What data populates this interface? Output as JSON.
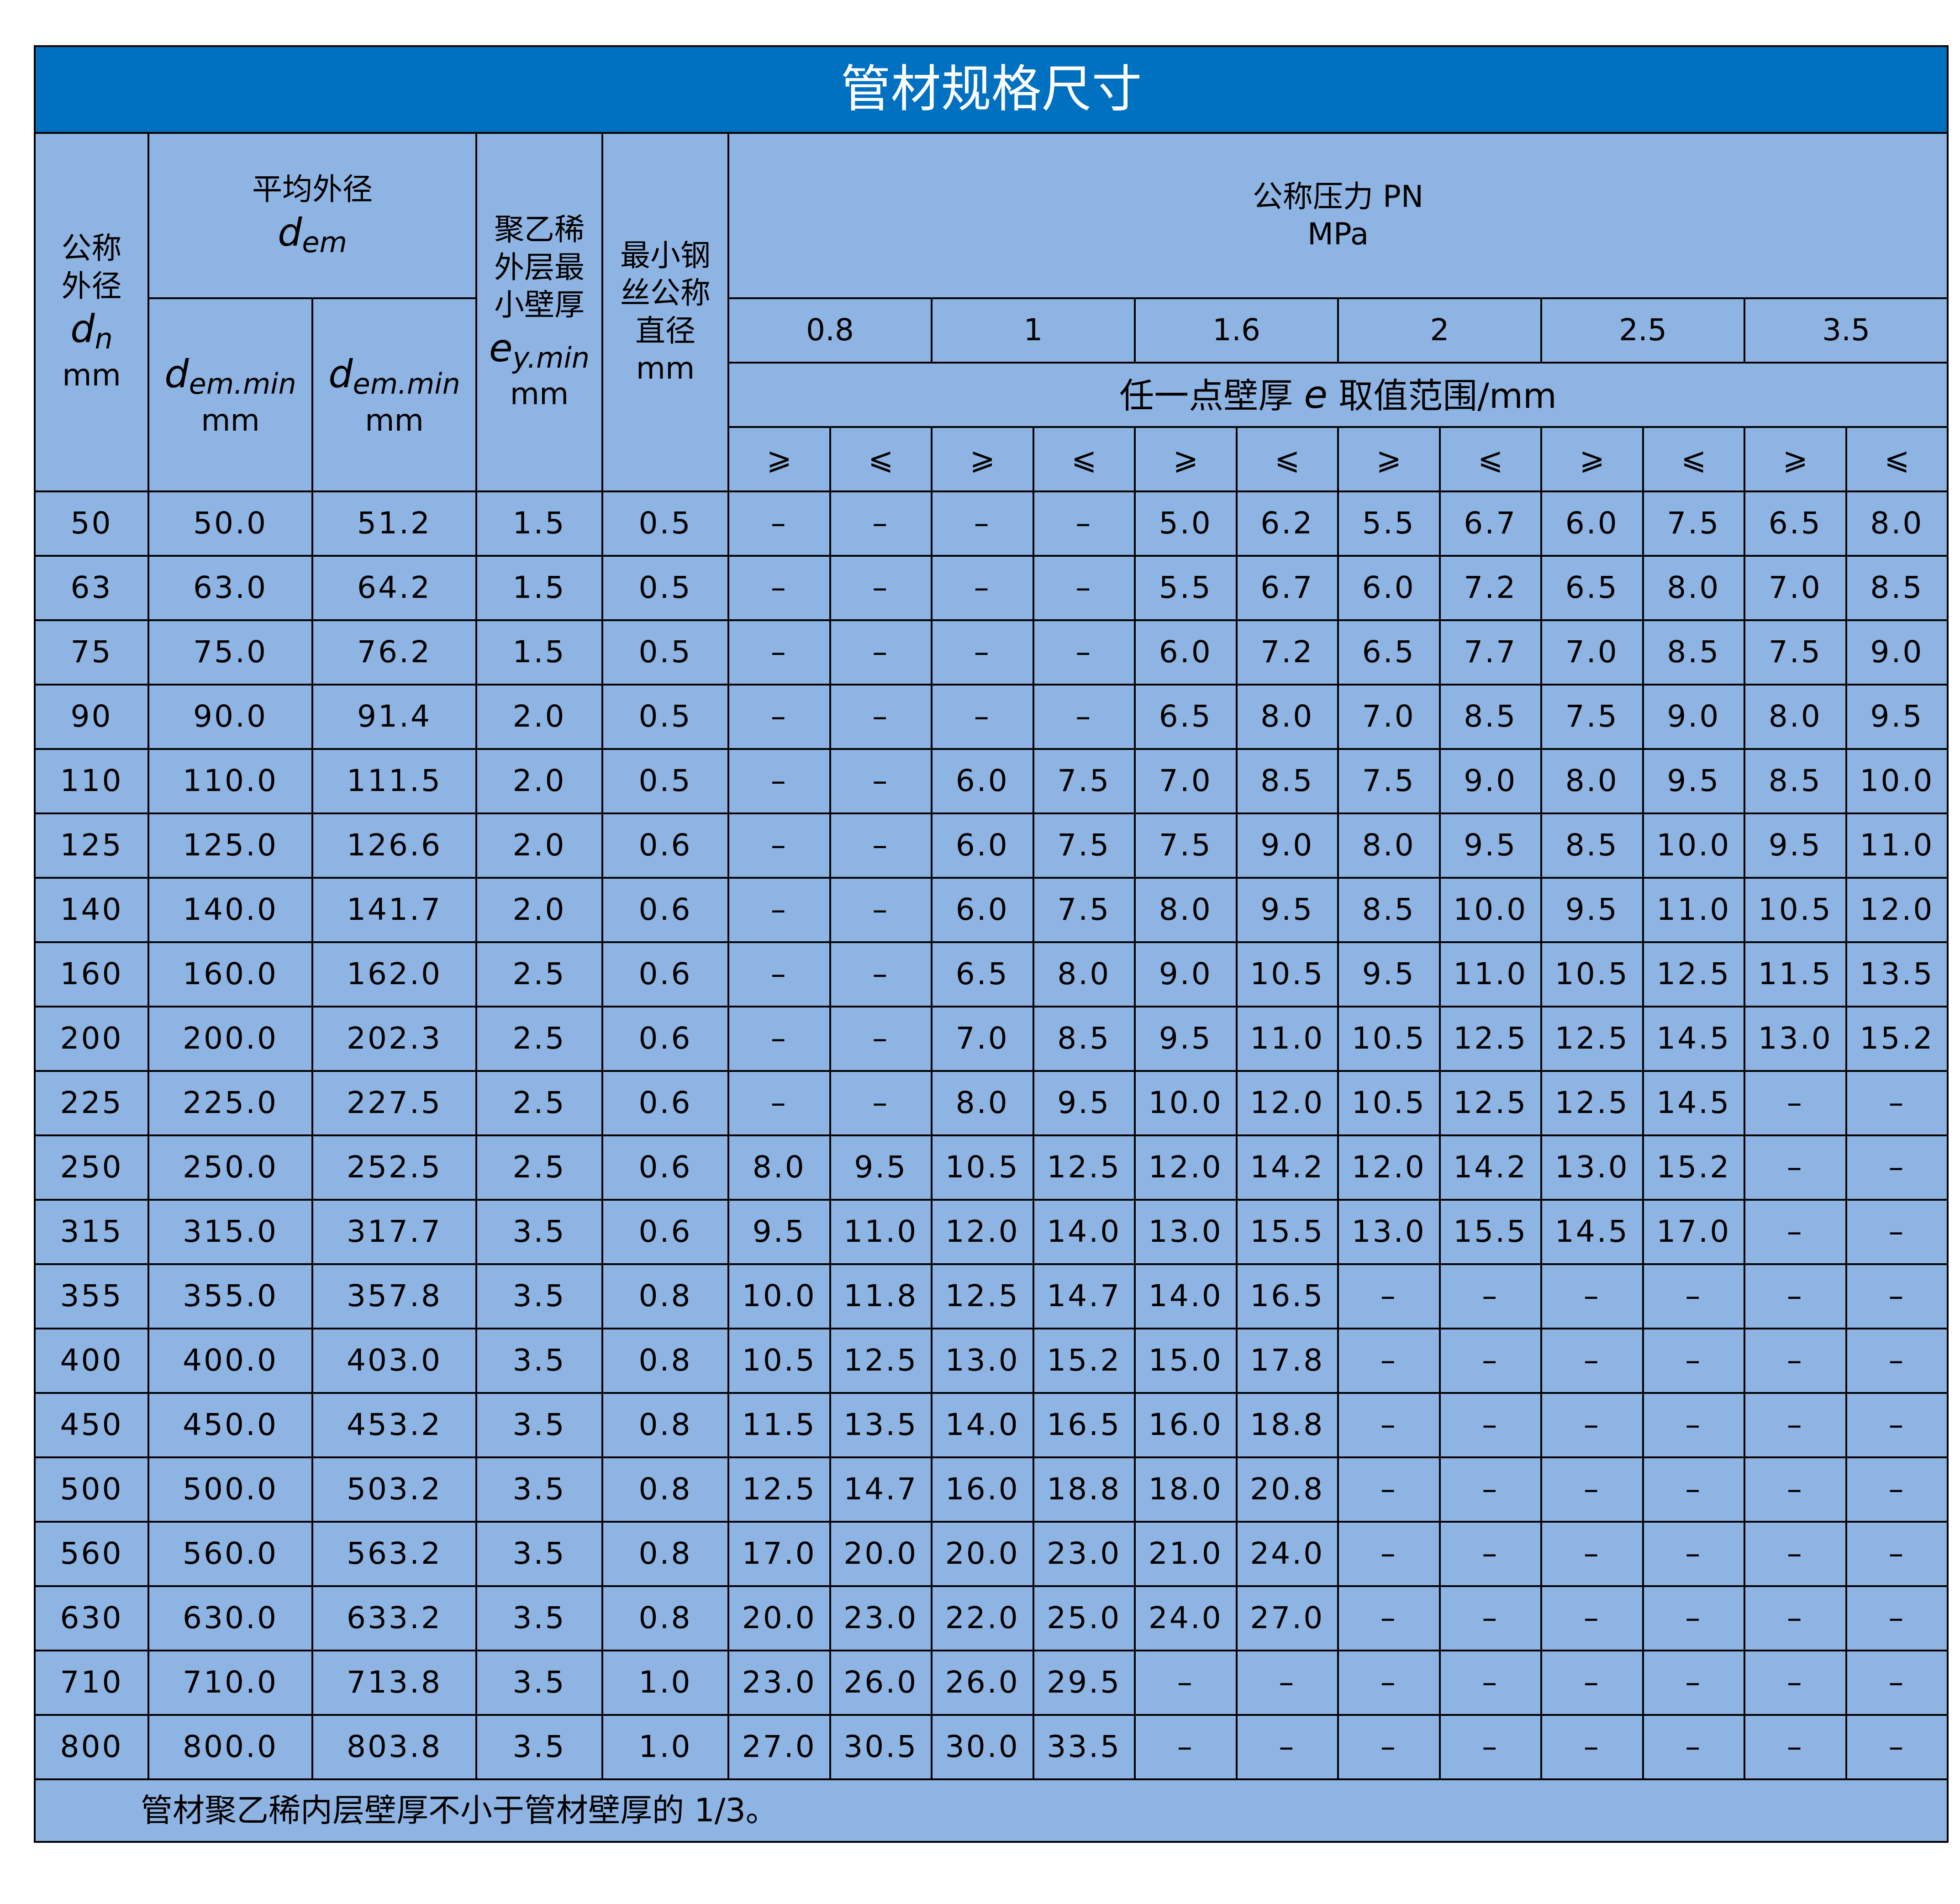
{
  "title": "管材规格尺寸",
  "headers": {
    "dn": {
      "label1": "公称",
      "label2": "外径",
      "symbol": "d",
      "sub": "n",
      "unit": "mm"
    },
    "dem": {
      "label": "平均外径",
      "symbol": "d",
      "sub": "em"
    },
    "dem_min1": {
      "symbol": "d",
      "sub": "em.min",
      "unit": "mm"
    },
    "dem_min2": {
      "symbol": "d",
      "sub": "em.min",
      "unit": "mm"
    },
    "ey": {
      "label1": "聚乙稀",
      "label2": "外层最",
      "label3": "小壁厚",
      "symbol": "e",
      "sub": "y.min",
      "unit": "mm"
    },
    "wire": {
      "label1": "最小钢",
      "label2": "丝公称",
      "label3": "直径",
      "unit": "mm"
    },
    "pn": {
      "label": "公称压力 PN",
      "unit": "MPa"
    },
    "pressures": [
      "0.8",
      "1",
      "1.6",
      "2",
      "2.5",
      "3.5"
    ],
    "range": {
      "pre": "任一点壁厚",
      "symbol": "e",
      "post": " 取值范围/mm"
    },
    "ge": "⩾",
    "le": "⩽"
  },
  "rows": [
    [
      "50",
      "50.0",
      "51.2",
      "1.5",
      "0.5",
      "–",
      "–",
      "–",
      "–",
      "5.0",
      "6.2",
      "5.5",
      "6.7",
      "6.0",
      "7.5",
      "6.5",
      "8.0"
    ],
    [
      "63",
      "63.0",
      "64.2",
      "1.5",
      "0.5",
      "–",
      "–",
      "–",
      "–",
      "5.5",
      "6.7",
      "6.0",
      "7.2",
      "6.5",
      "8.0",
      "7.0",
      "8.5"
    ],
    [
      "75",
      "75.0",
      "76.2",
      "1.5",
      "0.5",
      "–",
      "–",
      "–",
      "–",
      "6.0",
      "7.2",
      "6.5",
      "7.7",
      "7.0",
      "8.5",
      "7.5",
      "9.0"
    ],
    [
      "90",
      "90.0",
      "91.4",
      "2.0",
      "0.5",
      "–",
      "–",
      "–",
      "–",
      "6.5",
      "8.0",
      "7.0",
      "8.5",
      "7.5",
      "9.0",
      "8.0",
      "9.5"
    ],
    [
      "110",
      "110.0",
      "111.5",
      "2.0",
      "0.5",
      "–",
      "–",
      "6.0",
      "7.5",
      "7.0",
      "8.5",
      "7.5",
      "9.0",
      "8.0",
      "9.5",
      "8.5",
      "10.0"
    ],
    [
      "125",
      "125.0",
      "126.6",
      "2.0",
      "0.6",
      "–",
      "–",
      "6.0",
      "7.5",
      "7.5",
      "9.0",
      "8.0",
      "9.5",
      "8.5",
      "10.0",
      "9.5",
      "11.0"
    ],
    [
      "140",
      "140.0",
      "141.7",
      "2.0",
      "0.6",
      "–",
      "–",
      "6.0",
      "7.5",
      "8.0",
      "9.5",
      "8.5",
      "10.0",
      "9.5",
      "11.0",
      "10.5",
      "12.0"
    ],
    [
      "160",
      "160.0",
      "162.0",
      "2.5",
      "0.6",
      "–",
      "–",
      "6.5",
      "8.0",
      "9.0",
      "10.5",
      "9.5",
      "11.0",
      "10.5",
      "12.5",
      "11.5",
      "13.5"
    ],
    [
      "200",
      "200.0",
      "202.3",
      "2.5",
      "0.6",
      "–",
      "–",
      "7.0",
      "8.5",
      "9.5",
      "11.0",
      "10.5",
      "12.5",
      "12.5",
      "14.5",
      "13.0",
      "15.2"
    ],
    [
      "225",
      "225.0",
      "227.5",
      "2.5",
      "0.6",
      "–",
      "–",
      "8.0",
      "9.5",
      "10.0",
      "12.0",
      "10.5",
      "12.5",
      "12.5",
      "14.5",
      "–",
      "–"
    ],
    [
      "250",
      "250.0",
      "252.5",
      "2.5",
      "0.6",
      "8.0",
      "9.5",
      "10.5",
      "12.5",
      "12.0",
      "14.2",
      "12.0",
      "14.2",
      "13.0",
      "15.2",
      "–",
      "–"
    ],
    [
      "315",
      "315.0",
      "317.7",
      "3.5",
      "0.6",
      "9.5",
      "11.0",
      "12.0",
      "14.0",
      "13.0",
      "15.5",
      "13.0",
      "15.5",
      "14.5",
      "17.0",
      "–",
      "–"
    ],
    [
      "355",
      "355.0",
      "357.8",
      "3.5",
      "0.8",
      "10.0",
      "11.8",
      "12.5",
      "14.7",
      "14.0",
      "16.5",
      "–",
      "–",
      "–",
      "–",
      "–",
      "–"
    ],
    [
      "400",
      "400.0",
      "403.0",
      "3.5",
      "0.8",
      "10.5",
      "12.5",
      "13.0",
      "15.2",
      "15.0",
      "17.8",
      "–",
      "–",
      "–",
      "–",
      "–",
      "–"
    ],
    [
      "450",
      "450.0",
      "453.2",
      "3.5",
      "0.8",
      "11.5",
      "13.5",
      "14.0",
      "16.5",
      "16.0",
      "18.8",
      "–",
      "–",
      "–",
      "–",
      "–",
      "–"
    ],
    [
      "500",
      "500.0",
      "503.2",
      "3.5",
      "0.8",
      "12.5",
      "14.7",
      "16.0",
      "18.8",
      "18.0",
      "20.8",
      "–",
      "–",
      "–",
      "–",
      "–",
      "–"
    ],
    [
      "560",
      "560.0",
      "563.2",
      "3.5",
      "0.8",
      "17.0",
      "20.0",
      "20.0",
      "23.0",
      "21.0",
      "24.0",
      "–",
      "–",
      "–",
      "–",
      "–",
      "–"
    ],
    [
      "630",
      "630.0",
      "633.2",
      "3.5",
      "0.8",
      "20.0",
      "23.0",
      "22.0",
      "25.0",
      "24.0",
      "27.0",
      "–",
      "–",
      "–",
      "–",
      "–",
      "–"
    ],
    [
      "710",
      "710.0",
      "713.8",
      "3.5",
      "1.0",
      "23.0",
      "26.0",
      "26.0",
      "29.5",
      "–",
      "–",
      "–",
      "–",
      "–",
      "–",
      "–",
      "–"
    ],
    [
      "800",
      "800.0",
      "803.8",
      "3.5",
      "1.0",
      "27.0",
      "30.5",
      "30.0",
      "33.5",
      "–",
      "–",
      "–",
      "–",
      "–",
      "–",
      "–",
      "–"
    ]
  ],
  "footnote": "管材聚乙稀内层壁厚不小于管材壁厚的 1/3。",
  "colors": {
    "title_bg": "#0070c0",
    "table_bg": "#8eb4e3",
    "title_text": "#ffffff"
  }
}
